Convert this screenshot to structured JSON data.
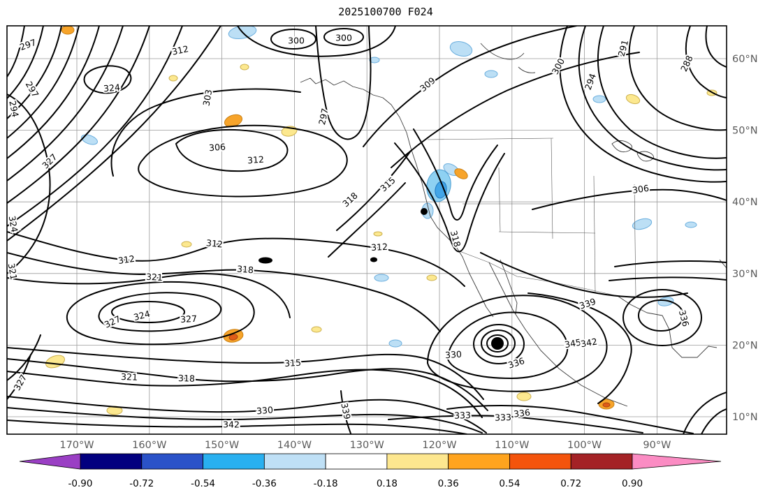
{
  "title": "2025100700 F024",
  "chart_data": {
    "type": "contour-map",
    "title": "2025100700 F024",
    "x_ticks": [
      "170°W",
      "160°W",
      "150°W",
      "140°W",
      "130°W",
      "120°W",
      "110°W",
      "100°W",
      "90°W"
    ],
    "y_ticks": [
      "10°N",
      "20°N",
      "30°N",
      "40°N",
      "50°N",
      "60°N"
    ],
    "contour_levels_visible": [
      288,
      291,
      294,
      297,
      300,
      303,
      306,
      309,
      312,
      315,
      318,
      321,
      324,
      327,
      330,
      333,
      336,
      339,
      342,
      345
    ],
    "storm_marker": {
      "x": 712,
      "y": 492
    },
    "contour_labels": [
      {
        "t": "297",
        "x": 40,
        "y": 64,
        "r": -20
      },
      {
        "t": "312",
        "x": 258,
        "y": 72,
        "r": -12
      },
      {
        "t": "300",
        "x": 424,
        "y": 58,
        "r": 0
      },
      {
        "t": "300",
        "x": 492,
        "y": 54,
        "r": 0
      },
      {
        "t": "309",
        "x": 612,
        "y": 121,
        "r": -40
      },
      {
        "t": "291",
        "x": 892,
        "y": 69,
        "r": -75
      },
      {
        "t": "288",
        "x": 983,
        "y": 91,
        "r": -65
      },
      {
        "t": "294",
        "x": 845,
        "y": 117,
        "r": -70
      },
      {
        "t": "300",
        "x": 799,
        "y": 95,
        "r": -62
      },
      {
        "t": "324",
        "x": 160,
        "y": 126,
        "r": -5
      },
      {
        "t": "303",
        "x": 297,
        "y": 140,
        "r": -80
      },
      {
        "t": "297",
        "x": 463,
        "y": 167,
        "r": -78
      },
      {
        "t": "294",
        "x": 20,
        "y": 156,
        "r": 78
      },
      {
        "t": "297",
        "x": 46,
        "y": 128,
        "r": 60
      },
      {
        "t": "327",
        "x": 71,
        "y": 231,
        "r": -45
      },
      {
        "t": "306",
        "x": 311,
        "y": 211,
        "r": -4
      },
      {
        "t": "312",
        "x": 366,
        "y": 229,
        "r": -4
      },
      {
        "t": "306",
        "x": 917,
        "y": 271,
        "r": -8
      },
      {
        "t": "315",
        "x": 555,
        "y": 264,
        "r": -42
      },
      {
        "t": "318",
        "x": 501,
        "y": 286,
        "r": -42
      },
      {
        "t": "312",
        "x": 543,
        "y": 354,
        "r": -3
      },
      {
        "t": "318",
        "x": 652,
        "y": 342,
        "r": 75
      },
      {
        "t": "324",
        "x": 19,
        "y": 321,
        "r": 80
      },
      {
        "t": "321",
        "x": 18,
        "y": 389,
        "r": 80
      },
      {
        "t": "312",
        "x": 181,
        "y": 372,
        "r": -8
      },
      {
        "t": "312",
        "x": 307,
        "y": 349,
        "r": 6
      },
      {
        "t": "318",
        "x": 351,
        "y": 386,
        "r": 5
      },
      {
        "t": "321",
        "x": 221,
        "y": 397,
        "r": 3
      },
      {
        "t": "327",
        "x": 161,
        "y": 461,
        "r": -25
      },
      {
        "t": "324",
        "x": 203,
        "y": 452,
        "r": -15
      },
      {
        "t": "327",
        "x": 270,
        "y": 457,
        "r": -3
      },
      {
        "t": "327",
        "x": 29,
        "y": 548,
        "r": -60
      },
      {
        "t": "321",
        "x": 185,
        "y": 540,
        "r": 2
      },
      {
        "t": "318",
        "x": 267,
        "y": 542,
        "r": 2
      },
      {
        "t": "315",
        "x": 419,
        "y": 520,
        "r": -3
      },
      {
        "t": "330",
        "x": 379,
        "y": 588,
        "r": -5
      },
      {
        "t": "342",
        "x": 331,
        "y": 608,
        "r": 0
      },
      {
        "t": "339",
        "x": 495,
        "y": 589,
        "r": 78
      },
      {
        "t": "333",
        "x": 662,
        "y": 595,
        "r": -2
      },
      {
        "t": "333",
        "x": 720,
        "y": 598,
        "r": -2
      },
      {
        "t": "336",
        "x": 747,
        "y": 592,
        "r": -6
      },
      {
        "t": "330",
        "x": 649,
        "y": 508,
        "r": -4
      },
      {
        "t": "336",
        "x": 739,
        "y": 520,
        "r": -18
      },
      {
        "t": "345",
        "x": 820,
        "y": 492,
        "r": -10
      },
      {
        "t": "342",
        "x": 843,
        "y": 491,
        "r": -10
      },
      {
        "t": "339",
        "x": 841,
        "y": 435,
        "r": -18
      },
      {
        "t": "336",
        "x": 979,
        "y": 456,
        "r": 75
      }
    ],
    "colorbar": {
      "ticks": [
        "-0.90",
        "-0.72",
        "-0.54",
        "-0.36",
        "-0.18",
        "0.18",
        "0.36",
        "0.54",
        "0.72",
        "0.90"
      ],
      "segment_colors": [
        "#02007f",
        "#2a52c8",
        "#29b0f0",
        "#bfe0f6",
        "#ffffff",
        "#fde78f",
        "#ffa41e",
        "#f4540c",
        "#a42226"
      ],
      "under_color": "#9a3fc4",
      "over_color": "#fb8cc3"
    }
  }
}
